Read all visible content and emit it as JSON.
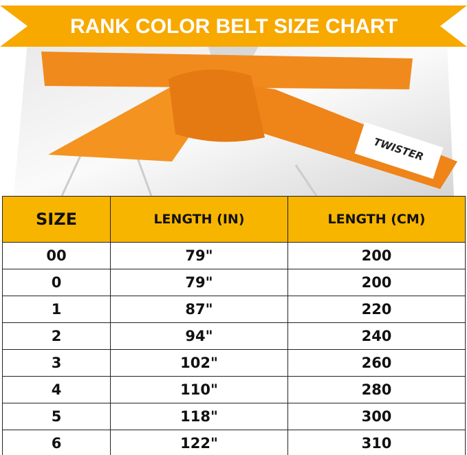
{
  "header": {
    "title": "RANK COLOR BELT SIZE CHART"
  },
  "image": {
    "brand": "TWISTER"
  },
  "table": {
    "columns": [
      "SIZE",
      "LENGTH (IN)",
      "LENGTH (CM)"
    ],
    "rows": [
      [
        "00",
        "79\"",
        "200"
      ],
      [
        "0",
        "79\"",
        "200"
      ],
      [
        "1",
        "87\"",
        "220"
      ],
      [
        "2",
        "94\"",
        "240"
      ],
      [
        "3",
        "102\"",
        "260"
      ],
      [
        "4",
        "110\"",
        "280"
      ],
      [
        "5",
        "118\"",
        "300"
      ],
      [
        "6",
        "122\"",
        "310"
      ]
    ]
  }
}
